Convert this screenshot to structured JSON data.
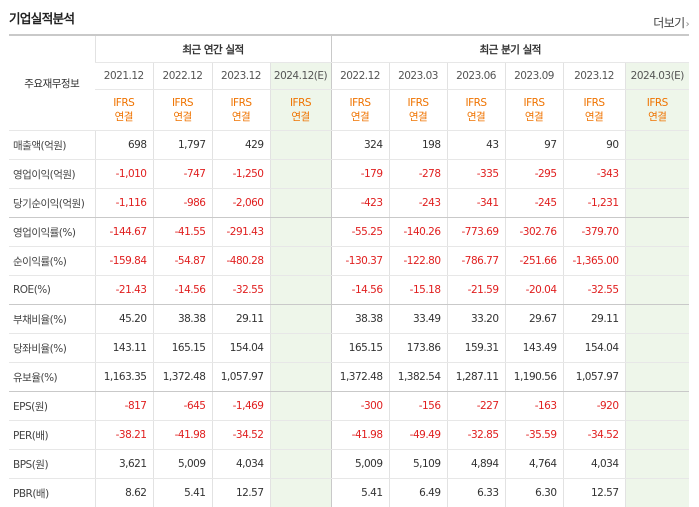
{
  "section_title": "기업실적분석",
  "more_label": "더보기",
  "more_arrow": "›",
  "corner_label": "주요재무정보",
  "groups": [
    "최근 연간 실적",
    "최근 분기 실적"
  ],
  "periods": [
    "2021.12",
    "2022.12",
    "2023.12",
    "2024.12(E)",
    "2022.12",
    "2023.03",
    "2023.06",
    "2023.09",
    "2023.12",
    "2024.03(E)"
  ],
  "standard_line1": "IFRS",
  "standard_line2": "연결",
  "estimate_columns": [
    3,
    9
  ],
  "rows": [
    {
      "label": "매출액(억원)",
      "values": [
        "698",
        "1,797",
        "429",
        "",
        "324",
        "198",
        "43",
        "97",
        "90",
        ""
      ]
    },
    {
      "label": "영업이익(억원)",
      "values": [
        "-1,010",
        "-747",
        "-1,250",
        "",
        "-179",
        "-278",
        "-335",
        "-295",
        "-343",
        ""
      ]
    },
    {
      "label": "당기순이익(억원)",
      "values": [
        "-1,116",
        "-986",
        "-2,060",
        "",
        "-423",
        "-243",
        "-341",
        "-245",
        "-1,231",
        ""
      ]
    },
    {
      "label": "영업이익률(%)",
      "values": [
        "-144.67",
        "-41.55",
        "-291.43",
        "",
        "-55.25",
        "-140.26",
        "-773.69",
        "-302.76",
        "-379.70",
        ""
      ]
    },
    {
      "label": "순이익률(%)",
      "values": [
        "-159.84",
        "-54.87",
        "-480.28",
        "",
        "-130.37",
        "-122.80",
        "-786.77",
        "-251.66",
        "-1,365.00",
        ""
      ]
    },
    {
      "label": "ROE(%)",
      "values": [
        "-21.43",
        "-14.56",
        "-32.55",
        "",
        "-14.56",
        "-15.18",
        "-21.59",
        "-20.04",
        "-32.55",
        ""
      ]
    },
    {
      "label": "부채비율(%)",
      "values": [
        "45.20",
        "38.38",
        "29.11",
        "",
        "38.38",
        "33.49",
        "33.20",
        "29.67",
        "29.11",
        ""
      ]
    },
    {
      "label": "당좌비율(%)",
      "values": [
        "143.11",
        "165.15",
        "154.04",
        "",
        "165.15",
        "173.86",
        "159.31",
        "143.49",
        "154.04",
        ""
      ]
    },
    {
      "label": "유보율(%)",
      "values": [
        "1,163.35",
        "1,372.48",
        "1,057.97",
        "",
        "1,372.48",
        "1,382.54",
        "1,287.11",
        "1,190.56",
        "1,057.97",
        ""
      ]
    },
    {
      "label": "EPS(원)",
      "values": [
        "-817",
        "-645",
        "-1,469",
        "",
        "-300",
        "-156",
        "-227",
        "-163",
        "-920",
        ""
      ]
    },
    {
      "label": "PER(배)",
      "values": [
        "-38.21",
        "-41.98",
        "-34.52",
        "",
        "-41.98",
        "-49.49",
        "-32.85",
        "-35.59",
        "-34.52",
        ""
      ]
    },
    {
      "label": "BPS(원)",
      "values": [
        "3,621",
        "5,009",
        "4,034",
        "",
        "5,009",
        "5,109",
        "4,894",
        "4,764",
        "4,034",
        ""
      ]
    },
    {
      "label": "PBR(배)",
      "values": [
        "8.62",
        "5.41",
        "12.57",
        "",
        "5.41",
        "6.49",
        "6.33",
        "6.30",
        "12.57",
        ""
      ]
    }
  ],
  "colors": {
    "negative": "#e02020",
    "standard": "#ef7300",
    "estimate_bg": "#eef6ea",
    "border_strong": "#c9c9c9"
  }
}
